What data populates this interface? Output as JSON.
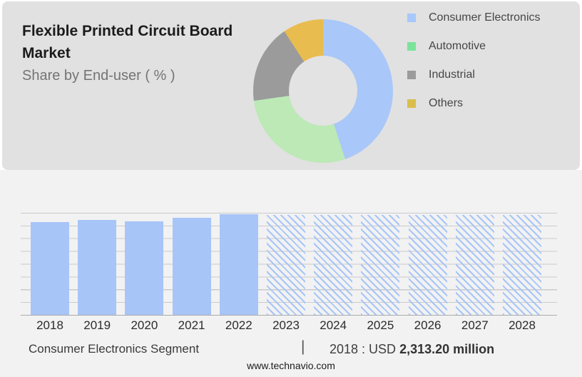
{
  "header": {
    "title_line1": "Flexible Printed Circuit Board",
    "title_line2": "Market",
    "subtitle": "Share by End-user ( % )"
  },
  "colors": {
    "top_panel_bg": "#E1E1E1",
    "bottom_panel_bg": "#F2F2F3",
    "donut_hole": "#E3E3E3",
    "bar_blue": "#A7C5F7",
    "gridline": "#CBCBCB",
    "axis_line": "#ABABAB"
  },
  "chart_data": [
    {
      "type": "pie",
      "subtype": "donut",
      "title": "Flexible Printed Circuit Board Market",
      "subtitle": "Share by End-user ( % )",
      "unit": "%",
      "labels": [
        "Consumer Electronics",
        "Automotive",
        "Industrial",
        "Others"
      ],
      "values_pct_est": [
        45,
        28,
        18,
        9
      ],
      "angles_deg": [
        [
          0,
          162
        ],
        [
          162,
          262
        ],
        [
          262,
          327
        ],
        [
          327,
          360
        ]
      ],
      "slice_colors": [
        "#A9C7F8",
        "#BCE9B6",
        "#9B9B9B",
        "#E9BC4F"
      ],
      "legend_colors": [
        "#A6C8FA",
        "#7BE49A",
        "#9B9B9B",
        "#D9BE4E"
      ],
      "legend_position": "right"
    },
    {
      "type": "bar",
      "categories": [
        "2018",
        "2019",
        "2020",
        "2021",
        "2022",
        "2023",
        "2024",
        "2025",
        "2026",
        "2027",
        "2028"
      ],
      "values": [
        2313.2,
        2370,
        2326,
        2418,
        2496,
        2494,
        2494,
        2494,
        2494,
        2494,
        2494
      ],
      "values_estimated_from_bar_heights": true,
      "labeled_point": {
        "category": "2018",
        "text": "2018 : USD 2,313.20 million"
      },
      "unit": "USD million",
      "ylim_est": [
        0,
        2539
      ],
      "grid": true,
      "forecast_start_index": 5,
      "forecast_style": "diagonal-hatch"
    }
  ],
  "footer": {
    "segment_label": "Consumer Electronics Segment",
    "separator": "|",
    "value_prefix": "2018 : USD ",
    "value_bold": "2,313.20 million",
    "website": "www.technavio.com"
  }
}
